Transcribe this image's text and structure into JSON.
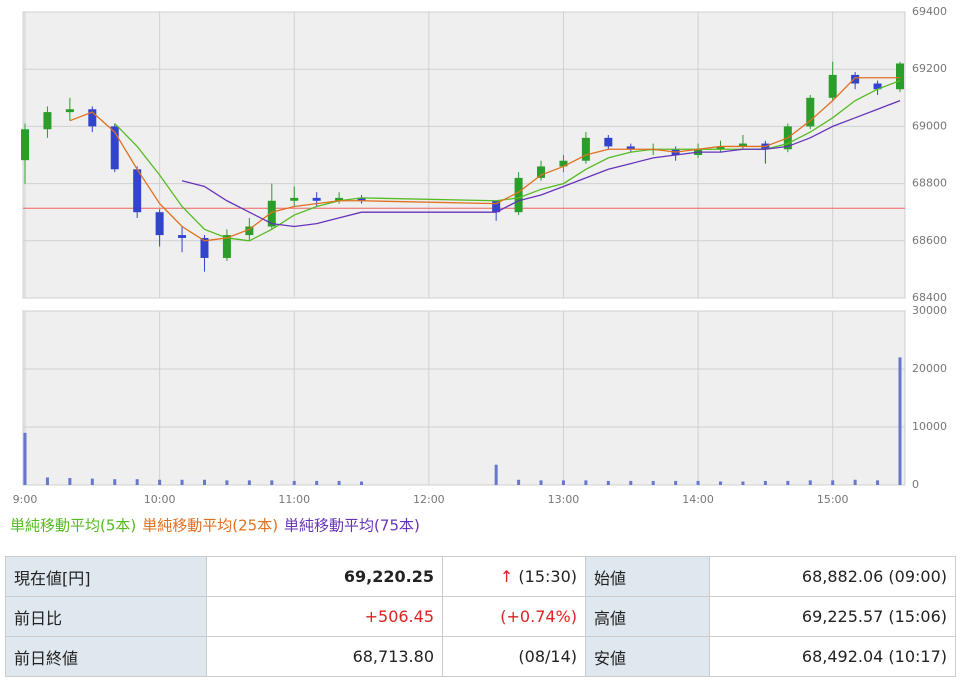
{
  "chart_data": {
    "type": "candlestick",
    "x": [
      "9:00",
      "9:10",
      "9:20",
      "9:30",
      "9:40",
      "9:50",
      "10:00",
      "10:10",
      "10:20",
      "10:30",
      "10:40",
      "10:50",
      "11:00",
      "11:10",
      "11:20",
      "11:30",
      "12:30",
      "12:40",
      "12:50",
      "13:00",
      "13:10",
      "13:20",
      "13:30",
      "13:40",
      "13:50",
      "14:00",
      "14:10",
      "14:20",
      "14:30",
      "14:40",
      "14:50",
      "15:00",
      "15:10",
      "15:20",
      "15:30"
    ],
    "xlim": [
      "9:00",
      "15:30"
    ],
    "xticks": [
      "9:00",
      "10:00",
      "11:00",
      "12:00",
      "13:00",
      "14:00",
      "15:00"
    ],
    "open": [
      68882,
      68990,
      69050,
      69060,
      69000,
      68850,
      68700,
      68620,
      68610,
      68540,
      68620,
      68650,
      68740,
      68750,
      68740,
      68750,
      68740,
      68700,
      68820,
      68860,
      68880,
      68960,
      68930,
      68920,
      68920,
      68900,
      68920,
      68930,
      68940,
      68920,
      69000,
      69100,
      69180,
      69150,
      69130
    ],
    "high": [
      69010,
      69070,
      69100,
      69070,
      69010,
      68860,
      68710,
      68650,
      68620,
      68640,
      68680,
      68800,
      68790,
      68770,
      68770,
      68760,
      68740,
      68840,
      68880,
      68900,
      68980,
      68970,
      68940,
      68940,
      68930,
      68940,
      68950,
      68970,
      68950,
      69010,
      69110,
      69226,
      69190,
      69160,
      69226
    ],
    "low": [
      68800,
      68960,
      69020,
      68980,
      68840,
      68680,
      68580,
      68560,
      68492,
      68530,
      68600,
      68640,
      68720,
      68720,
      68730,
      68730,
      68670,
      68690,
      68810,
      68840,
      68870,
      68920,
      68910,
      68900,
      68880,
      68890,
      68910,
      68920,
      68870,
      68910,
      68990,
      69090,
      69130,
      69110,
      69120
    ],
    "close": [
      68990,
      69050,
      69060,
      69000,
      68850,
      68700,
      68620,
      68610,
      68540,
      68620,
      68650,
      68740,
      68750,
      68740,
      68750,
      68740,
      68700,
      68820,
      68860,
      68880,
      68960,
      68930,
      68920,
      68920,
      68900,
      68920,
      68930,
      68940,
      68920,
      69000,
      69100,
      69180,
      69150,
      69130,
      69220
    ],
    "up_color": "#2a9d2a",
    "down_color": "#3344cc",
    "series": [
      {
        "name": "単純移動平均(5本)",
        "color": "#55bb22",
        "values": [
          null,
          null,
          null,
          null,
          69010,
          68930,
          68830,
          68720,
          68640,
          68610,
          68600,
          68640,
          68690,
          68720,
          68740,
          68750,
          68740,
          68750,
          68780,
          68800,
          68850,
          68890,
          68910,
          68920,
          68920,
          68920,
          68920,
          68920,
          68920,
          68940,
          68980,
          69030,
          69090,
          69130,
          69160
        ]
      },
      {
        "name": "単純移動平均(25本)",
        "color": "#e07020",
        "values": [
          null,
          null,
          69020,
          69050,
          68980,
          68850,
          68730,
          68650,
          68600,
          68610,
          68640,
          68700,
          68720,
          68730,
          68740,
          68740,
          68730,
          68770,
          68830,
          68860,
          68900,
          68920,
          68920,
          68920,
          68910,
          68920,
          68930,
          68930,
          68930,
          68960,
          69020,
          69090,
          69170,
          69170,
          69170
        ]
      },
      {
        "name": "単純移動平均(75本)",
        "color": "#6633bb",
        "values": [
          null,
          null,
          null,
          null,
          null,
          null,
          null,
          68810,
          68790,
          68740,
          68700,
          68660,
          68650,
          68660,
          68680,
          68700,
          68700,
          68740,
          68760,
          68790,
          68820,
          68850,
          68870,
          68890,
          68900,
          68910,
          68910,
          68920,
          68920,
          68930,
          68960,
          69000,
          69030,
          69060,
          69090
        ]
      }
    ],
    "reference_line": 68713.8,
    "reference_color": "#ee6666",
    "ylim": [
      68400,
      69400
    ],
    "yticks": [
      68400,
      68600,
      68800,
      69000,
      69200,
      69400
    ],
    "volume": {
      "values": [
        9000,
        1300,
        1200,
        1100,
        1000,
        1000,
        900,
        900,
        900,
        800,
        800,
        800,
        700,
        700,
        700,
        600,
        3500,
        900,
        800,
        800,
        800,
        700,
        700,
        700,
        700,
        700,
        600,
        600,
        700,
        700,
        800,
        800,
        900,
        800,
        22000
      ],
      "color": "#6677cc",
      "ylim": [
        0,
        30000
      ],
      "yticks": [
        0,
        10000,
        20000,
        30000
      ]
    },
    "grid": true
  },
  "table": {
    "rows": [
      [
        {
          "label": "現在値[円]"
        },
        {
          "value": "69,220.25"
        },
        {
          "arrow": "↑",
          "note": "(15:30)"
        },
        {
          "label": "始値"
        },
        {
          "value": "68,882.06 (09:00)"
        }
      ],
      [
        {
          "label": "前日比"
        },
        {
          "value": "+506.45"
        },
        {
          "note": "(+0.74%)"
        },
        {
          "label": "高値"
        },
        {
          "value": "69,225.57 (15:06)"
        }
      ],
      [
        {
          "label": "前日終値"
        },
        {
          "value": "68,713.80"
        },
        {
          "note": "(08/14)"
        },
        {
          "label": "安値"
        },
        {
          "value": "68,492.04 (10:17)"
        }
      ]
    ]
  }
}
